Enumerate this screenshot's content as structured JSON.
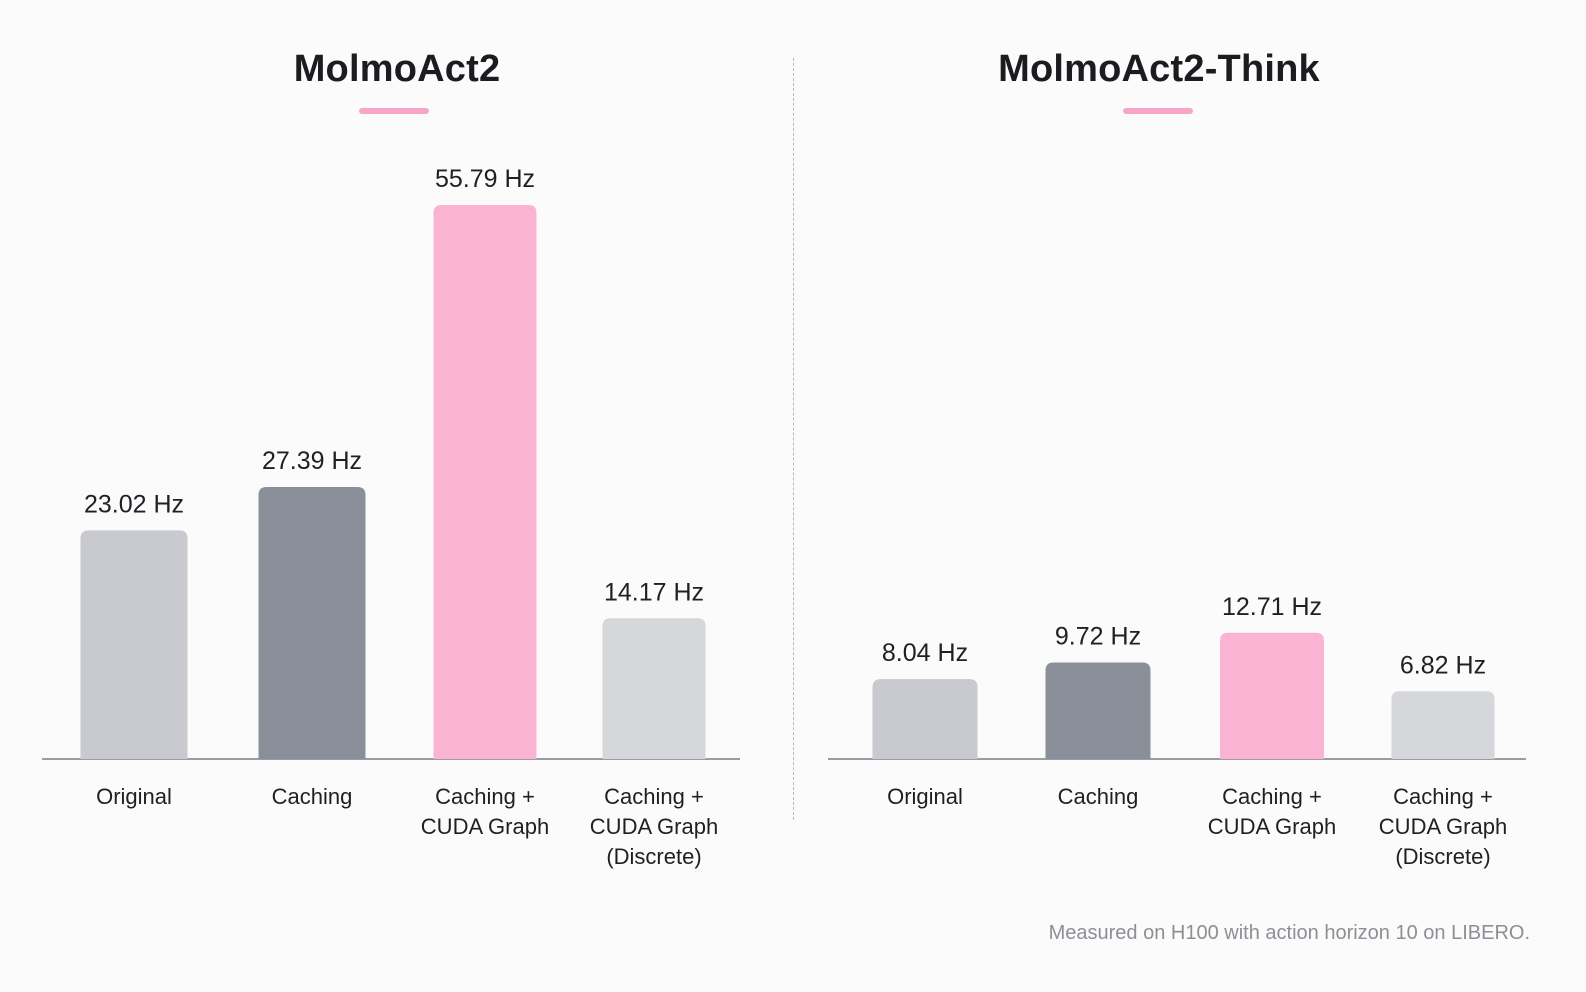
{
  "chart_data": [
    {
      "type": "bar",
      "title": "MolmoAct2",
      "categories": [
        [
          "Original"
        ],
        [
          "Caching"
        ],
        [
          "Caching +",
          "CUDA Graph"
        ],
        [
          "Caching +",
          "CUDA Graph",
          "(Discrete)"
        ]
      ],
      "values": [
        23.02,
        27.39,
        55.79,
        14.17
      ],
      "value_labels": [
        "23.02 Hz",
        "27.39 Hz",
        "55.79 Hz",
        "14.17 Hz"
      ],
      "bar_colors": [
        "#c9cacf",
        "#8b8f99",
        "#fbb3d4",
        "#d6d7db"
      ],
      "unit": "Hz",
      "xlabel": "",
      "ylabel": "",
      "ylim": [
        0,
        55.79
      ],
      "grid": false,
      "legend": "none"
    },
    {
      "type": "bar",
      "title": "MolmoAct2-Think",
      "categories": [
        [
          "Original"
        ],
        [
          "Caching"
        ],
        [
          "Caching +",
          "CUDA Graph"
        ],
        [
          "Caching +",
          "CUDA Graph",
          "(Discrete)"
        ]
      ],
      "values": [
        8.04,
        9.72,
        12.71,
        6.82
      ],
      "value_labels": [
        "8.04 Hz",
        "9.72 Hz",
        "12.71 Hz",
        "6.82 Hz"
      ],
      "bar_colors": [
        "#c9cacf",
        "#8b8f99",
        "#fbb3d4",
        "#d6d7db"
      ],
      "unit": "Hz",
      "xlabel": "",
      "ylabel": "",
      "ylim": [
        0,
        30.4
      ],
      "grid": false,
      "legend": "none"
    }
  ],
  "footnote": "Measured on H100 with action horizon 10 on LIBERO.",
  "colors": {
    "accent_pink": "#f7a6c9",
    "axis": "#9a9ba3",
    "divider": "#b9bac0"
  }
}
